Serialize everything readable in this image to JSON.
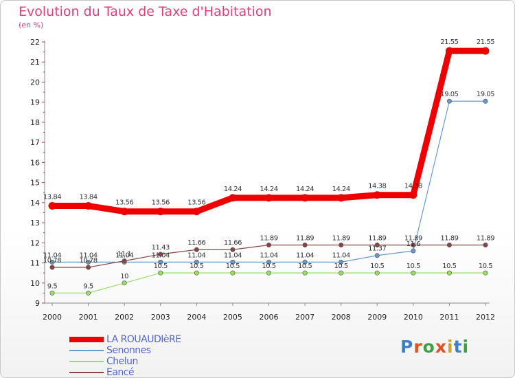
{
  "title": "Evolution du Taux de Taxe d'Habitation",
  "unit": "(en %)",
  "logo": {
    "text": "Proxiti",
    "colors": [
      "#3a7fd0",
      "#e05020",
      "#3aa040",
      "#e05020",
      "#d8a020",
      "#3a7fd0",
      "#3aa040"
    ]
  },
  "chart_data": {
    "type": "line",
    "title": "Evolution du Taux de Taxe d'Habitation",
    "ylabel": "(en %)",
    "xlabel": "",
    "categories": [
      "2000",
      "2001",
      "2002",
      "2003",
      "2004",
      "2005",
      "2006",
      "2007",
      "2008",
      "2009",
      "2010",
      "2011",
      "2012"
    ],
    "ylim": [
      9,
      22
    ],
    "yticks": [
      9,
      10,
      11,
      12,
      13,
      14,
      15,
      16,
      17,
      18,
      19,
      20,
      21,
      22
    ],
    "series": [
      {
        "name": "LA ROUAUDIèRE",
        "color": "#ee0000",
        "values": [
          13.84,
          13.84,
          13.56,
          13.56,
          13.56,
          14.24,
          14.24,
          14.24,
          14.24,
          14.38,
          14.38,
          21.55,
          21.55
        ],
        "labels": [
          "13.84",
          "13.84",
          "13.56",
          "13.56",
          "13.56",
          "14.24",
          "14.24",
          "14.24",
          "14.24",
          "14.38",
          "14.38",
          "21.55",
          "21.55"
        ]
      },
      {
        "name": "Senonnes",
        "color": "#6699cc",
        "values": [
          11.04,
          11.04,
          11.04,
          11.04,
          11.04,
          11.04,
          11.04,
          11.04,
          11.04,
          11.37,
          11.6,
          19.05,
          19.05
        ],
        "labels": [
          "11.04",
          "11.04",
          "11.04",
          "11.04",
          "11.04",
          "11.04",
          "11.04",
          "11.04",
          "11.04",
          "11.37",
          "11.6",
          "19.05",
          "19.05"
        ]
      },
      {
        "name": "Chelun",
        "color": "#99dd66",
        "values": [
          9.5,
          9.5,
          10,
          10.5,
          10.5,
          10.5,
          10.5,
          10.5,
          10.5,
          10.5,
          10.5,
          10.5,
          10.5
        ],
        "labels": [
          "9.5",
          "9.5",
          "10",
          "10.5",
          "10.5",
          "10.5",
          "10.5",
          "10.5",
          "10.5",
          "10.5",
          "10.5",
          "10.5",
          "10.5"
        ]
      },
      {
        "name": "Eancé",
        "color": "#884444",
        "values": [
          10.78,
          10.78,
          11.1,
          11.43,
          11.66,
          11.66,
          11.89,
          11.89,
          11.89,
          11.89,
          11.89,
          11.89,
          11.89
        ],
        "labels": [
          "10.78",
          "10.78",
          "11.1",
          "11.43",
          "11.66",
          "11.66",
          "11.89",
          "11.89",
          "11.89",
          "11.89",
          "11.89",
          "11.89",
          "11.89"
        ]
      }
    ],
    "legend": "bottom-left"
  }
}
